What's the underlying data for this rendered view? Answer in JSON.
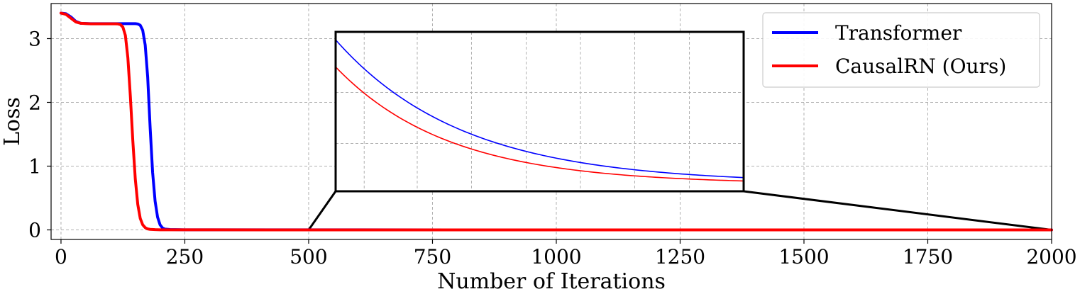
{
  "chart_data": {
    "type": "line",
    "xlabel": "Number of Iterations",
    "ylabel": "Loss",
    "xlim": [
      -20,
      2000
    ],
    "ylim": [
      -0.15,
      3.55
    ],
    "xticks": [
      0,
      250,
      500,
      750,
      1000,
      1250,
      1500,
      1750,
      2000
    ],
    "yticks": [
      0,
      1,
      2,
      3
    ],
    "grid": true,
    "legend_position": "top-right",
    "series": [
      {
        "name": "Transformer",
        "color": "#0000ff",
        "x": [
          0,
          10,
          20,
          30,
          40,
          60,
          80,
          100,
          120,
          140,
          150,
          155,
          160,
          165,
          170,
          175,
          180,
          185,
          190,
          195,
          200,
          205,
          210,
          220,
          250,
          300,
          500,
          1000,
          1500,
          2000
        ],
        "y": [
          3.4,
          3.39,
          3.34,
          3.27,
          3.24,
          3.235,
          3.235,
          3.235,
          3.235,
          3.235,
          3.235,
          3.23,
          3.21,
          3.13,
          2.9,
          2.4,
          1.6,
          0.9,
          0.45,
          0.2,
          0.08,
          0.03,
          0.012,
          0.005,
          0.002,
          0.001,
          0.0008,
          0.0004,
          0.0002,
          0.0001
        ]
      },
      {
        "name": "CausalRN (Ours)",
        "color": "#ff0000",
        "x": [
          0,
          10,
          20,
          30,
          40,
          60,
          80,
          100,
          110,
          115,
          120,
          125,
          130,
          135,
          140,
          145,
          150,
          155,
          160,
          165,
          170,
          175,
          180,
          190,
          200,
          250,
          300,
          500,
          1000,
          1500,
          2000
        ],
        "y": [
          3.4,
          3.38,
          3.32,
          3.26,
          3.24,
          3.232,
          3.232,
          3.232,
          3.232,
          3.23,
          3.22,
          3.18,
          3.05,
          2.7,
          2.1,
          1.4,
          0.8,
          0.4,
          0.18,
          0.08,
          0.035,
          0.015,
          0.008,
          0.004,
          0.002,
          0.001,
          0.0008,
          0.0006,
          0.0003,
          0.00015,
          8e-05
        ]
      }
    ],
    "inset": {
      "source_xrange": [
        500,
        2000
      ],
      "source_yanchor": 0
    }
  }
}
